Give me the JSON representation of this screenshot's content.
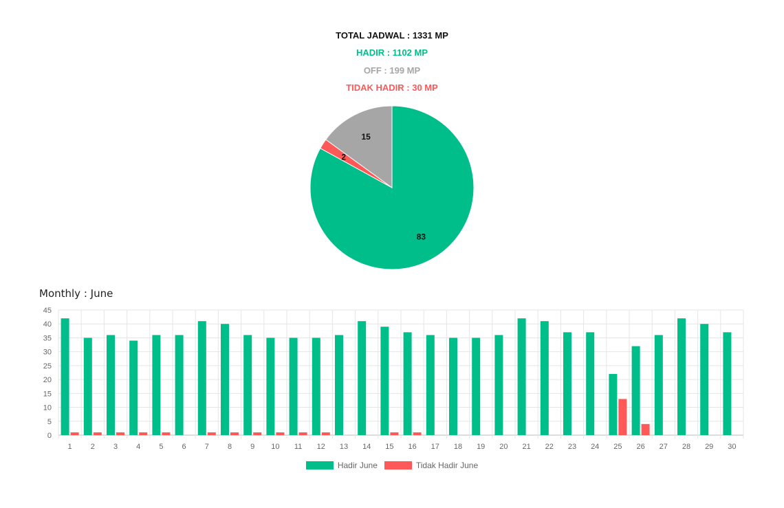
{
  "summary": {
    "total": "TOTAL JADWAL : 1331 MP",
    "hadir": "HADIR : 1102 MP",
    "off": "OFF : 199 MP",
    "tidak_hadir": "TIDAK HADIR : 30 MP"
  },
  "monthly_title": "Monthly : June",
  "colors": {
    "hadir": "#00be8a",
    "tidak_hadir": "#fe5858",
    "off": "#a6a6a6"
  },
  "chart_data": [
    {
      "type": "pie",
      "slices": [
        {
          "label": "83",
          "value": 83,
          "color": "#00be8a"
        },
        {
          "label": "2",
          "value": 2,
          "color": "#fe5858"
        },
        {
          "label": "15",
          "value": 15,
          "color": "#a6a6a6"
        }
      ]
    },
    {
      "type": "bar",
      "categories": [
        "1",
        "2",
        "3",
        "4",
        "5",
        "6",
        "7",
        "8",
        "9",
        "10",
        "11",
        "12",
        "13",
        "14",
        "15",
        "16",
        "17",
        "18",
        "19",
        "20",
        "21",
        "22",
        "23",
        "24",
        "25",
        "26",
        "27",
        "28",
        "29",
        "30"
      ],
      "ylim": [
        0,
        45
      ],
      "yticks": [
        0,
        5,
        10,
        15,
        20,
        25,
        30,
        35,
        40,
        45
      ],
      "series": [
        {
          "name": "Hadir June",
          "color": "#00be8a",
          "values": [
            42,
            35,
            36,
            34,
            36,
            36,
            41,
            40,
            36,
            35,
            35,
            35,
            36,
            41,
            39,
            37,
            36,
            35,
            35,
            36,
            42,
            41,
            37,
            37,
            22,
            32,
            36,
            42,
            40,
            37
          ]
        },
        {
          "name": "Tidak Hadir June",
          "color": "#fe5858",
          "values": [
            1,
            1,
            1,
            1,
            1,
            0,
            1,
            1,
            1,
            1,
            1,
            1,
            0,
            0,
            1,
            1,
            0,
            0,
            0,
            0,
            0,
            0,
            0,
            0,
            13,
            4,
            0,
            0,
            0,
            0
          ]
        }
      ],
      "legend_position": "bottom"
    }
  ]
}
